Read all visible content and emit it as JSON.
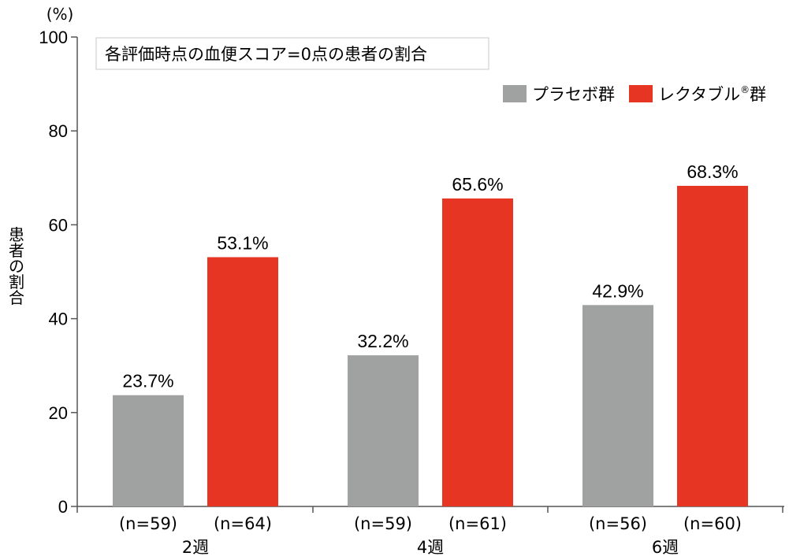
{
  "chart_data": {
    "type": "bar",
    "title": "各評価時点の血便スコア=0点の患者の割合",
    "unit_label": "(%)",
    "ylabel": "患者の割合",
    "xlabel": "",
    "ylim": [
      0,
      100
    ],
    "yticks": [
      0,
      20,
      40,
      60,
      80,
      100
    ],
    "categories": [
      "2週",
      "4週",
      "6週"
    ],
    "grid": false,
    "legend_position": "top-right",
    "series": [
      {
        "name": "プラセボ群",
        "color": "#a0a1a1",
        "values": [
          23.7,
          32.2,
          42.9
        ],
        "value_labels": [
          "23.7%",
          "32.2%",
          "42.9%"
        ],
        "n_labels": [
          "(n=59)",
          "(n=59)",
          "(n=56)"
        ]
      },
      {
        "name": "レクタブル",
        "name_sup": "®",
        "name_suffix": "群",
        "color": "#e73523",
        "values": [
          53.1,
          65.6,
          68.3
        ],
        "value_labels": [
          "53.1%",
          "65.6%",
          "68.3%"
        ],
        "n_labels": [
          "(n=64)",
          "(n=61)",
          "(n=60)"
        ]
      }
    ]
  }
}
